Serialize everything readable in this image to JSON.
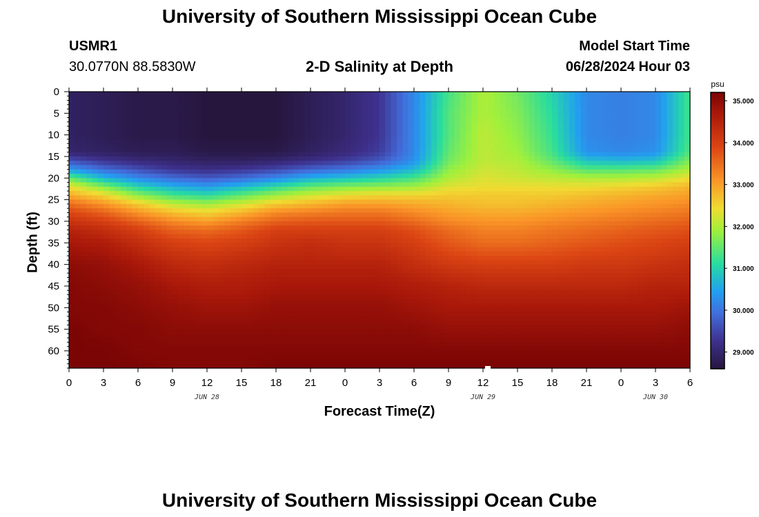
{
  "page": {
    "title_top": "University of Southern Mississippi Ocean Cube",
    "title_bottom": "University of Southern Mississippi Ocean Cube",
    "station_id": "USMR1",
    "station_coords": "30.0770N  88.5830W",
    "plot_title": "2-D Salinity at Depth",
    "model_start_label": "Model Start Time",
    "model_start_value": "06/28/2024 Hour 03"
  },
  "chart_data": {
    "type": "heatmap",
    "title": "2-D Salinity at Depth",
    "xlabel": "Forecast Time(Z)",
    "ylabel": "Depth (ft)",
    "x_tick_labels": [
      "0",
      "3",
      "6",
      "9",
      "12",
      "15",
      "18",
      "21",
      "0",
      "3",
      "6",
      "9",
      "12",
      "15",
      "18",
      "21",
      "0",
      "3",
      "6"
    ],
    "x_date_labels": [
      {
        "label": "JUN 28",
        "tick_index": 4
      },
      {
        "label": "JUN 29",
        "tick_index": 12
      },
      {
        "label": "JUN 30",
        "tick_index": 17
      }
    ],
    "xlim_hours": [
      0,
      54
    ],
    "ylim_ft": [
      0,
      64
    ],
    "y_tick_values": [
      0,
      5,
      10,
      15,
      20,
      25,
      30,
      35,
      40,
      45,
      50,
      55,
      60
    ],
    "colorbar": {
      "unit": "psu",
      "range": [
        28.6,
        35.2
      ],
      "tick_values": [
        35.0,
        34.0,
        33.0,
        32.0,
        31.0,
        30.0,
        29.0
      ],
      "tick_labels": [
        "35.000",
        "34.000",
        "33.000",
        "32.000",
        "31.000",
        "30.000",
        "29.000"
      ]
    },
    "profile_time_hours": [
      0,
      3,
      6,
      9,
      12,
      15,
      18,
      21,
      24,
      27,
      30,
      33,
      36,
      39,
      42,
      45,
      48,
      51,
      54
    ],
    "profile_depth_ft": [
      0,
      5,
      10,
      14,
      16,
      18,
      20,
      22,
      24,
      26,
      28,
      30,
      32,
      35,
      40,
      45,
      50,
      55,
      60,
      64
    ],
    "salinity_psu": [
      [
        28.9,
        28.9,
        28.9,
        29.0,
        29.6,
        30.4,
        31.5,
        32.4,
        32.9,
        33.5,
        33.9,
        34.2,
        34.5,
        34.7,
        35.0,
        35.1,
        35.1,
        35.2,
        35.2,
        35.2
      ],
      [
        28.8,
        28.8,
        28.8,
        28.9,
        29.3,
        29.9,
        30.7,
        31.7,
        32.5,
        33.1,
        33.6,
        34.0,
        34.3,
        34.6,
        34.9,
        35.0,
        35.1,
        35.1,
        35.2,
        35.2
      ],
      [
        28.7,
        28.7,
        28.7,
        28.8,
        29.1,
        29.6,
        30.2,
        31.0,
        31.8,
        32.6,
        33.1,
        33.6,
        34.0,
        34.3,
        34.7,
        34.9,
        35.0,
        35.1,
        35.1,
        35.2
      ],
      [
        28.7,
        28.7,
        28.7,
        28.8,
        29.0,
        29.3,
        29.9,
        30.6,
        31.3,
        32.1,
        32.7,
        33.2,
        33.6,
        34.0,
        34.4,
        34.7,
        34.9,
        35.0,
        35.1,
        35.1
      ],
      [
        28.6,
        28.6,
        28.6,
        28.7,
        28.9,
        29.2,
        29.7,
        30.4,
        31.1,
        31.9,
        32.5,
        33.0,
        33.5,
        33.9,
        34.3,
        34.6,
        34.8,
        35.0,
        35.1,
        35.1
      ],
      [
        28.6,
        28.6,
        28.6,
        28.7,
        28.9,
        29.3,
        29.9,
        30.7,
        31.5,
        32.2,
        32.8,
        33.3,
        33.7,
        34.0,
        34.4,
        34.6,
        34.8,
        35.0,
        35.1,
        35.1
      ],
      [
        28.6,
        28.6,
        28.6,
        28.7,
        29.0,
        29.5,
        30.2,
        31.1,
        31.9,
        32.6,
        33.2,
        33.6,
        34.0,
        34.2,
        34.5,
        34.7,
        34.9,
        35.0,
        35.1,
        35.2
      ],
      [
        28.8,
        28.8,
        28.8,
        28.9,
        29.2,
        29.8,
        30.6,
        31.5,
        32.2,
        32.8,
        33.3,
        33.7,
        34.0,
        34.3,
        34.5,
        34.7,
        34.9,
        35.0,
        35.1,
        35.2
      ],
      [
        29.0,
        29.0,
        29.0,
        29.1,
        29.4,
        30.0,
        30.8,
        31.7,
        32.4,
        33.0,
        33.4,
        33.7,
        34.0,
        34.2,
        34.5,
        34.7,
        34.9,
        35.0,
        35.1,
        35.2
      ],
      [
        29.3,
        29.3,
        29.3,
        29.4,
        29.7,
        30.3,
        31.0,
        31.8,
        32.5,
        33.0,
        33.4,
        33.7,
        34.0,
        34.2,
        34.5,
        34.7,
        34.9,
        35.0,
        35.1,
        35.2
      ],
      [
        30.2,
        30.2,
        30.2,
        30.2,
        30.3,
        30.7,
        31.3,
        31.9,
        32.5,
        32.9,
        33.2,
        33.5,
        33.8,
        34.0,
        34.3,
        34.6,
        34.8,
        35.0,
        35.1,
        35.2
      ],
      [
        31.3,
        31.4,
        31.4,
        31.5,
        31.6,
        31.8,
        32.0,
        32.3,
        32.6,
        32.8,
        33.0,
        33.2,
        33.5,
        33.7,
        34.1,
        34.5,
        34.7,
        34.9,
        35.1,
        35.2
      ],
      [
        32.0,
        32.0,
        32.1,
        32.1,
        32.1,
        32.2,
        32.3,
        32.4,
        32.6,
        32.7,
        32.9,
        33.1,
        33.3,
        33.5,
        34.0,
        34.4,
        34.7,
        34.9,
        35.1,
        35.2
      ],
      [
        31.6,
        31.7,
        31.8,
        31.9,
        32.0,
        32.1,
        32.2,
        32.4,
        32.6,
        32.7,
        32.9,
        33.1,
        33.3,
        33.5,
        34.0,
        34.4,
        34.7,
        34.9,
        35.1,
        35.2
      ],
      [
        31.0,
        31.1,
        31.2,
        31.3,
        31.5,
        31.8,
        32.1,
        32.4,
        32.6,
        32.8,
        33.0,
        33.2,
        33.4,
        33.6,
        34.0,
        34.4,
        34.7,
        34.9,
        35.1,
        35.2
      ],
      [
        30.2,
        30.2,
        30.2,
        30.3,
        30.8,
        31.4,
        32.0,
        32.4,
        32.7,
        32.9,
        33.1,
        33.3,
        33.5,
        33.7,
        34.1,
        34.4,
        34.7,
        34.9,
        35.1,
        35.2
      ],
      [
        30.1,
        30.1,
        30.1,
        30.2,
        30.7,
        31.4,
        32.0,
        32.5,
        32.8,
        33.0,
        33.2,
        33.4,
        33.6,
        33.8,
        34.1,
        34.4,
        34.7,
        34.9,
        35.1,
        35.2
      ],
      [
        30.2,
        30.2,
        30.2,
        30.3,
        30.8,
        31.5,
        32.1,
        32.6,
        32.9,
        33.1,
        33.3,
        33.5,
        33.7,
        33.9,
        34.2,
        34.5,
        34.7,
        34.9,
        35.1,
        35.2
      ],
      [
        31.3,
        31.3,
        31.3,
        31.4,
        31.7,
        32.0,
        32.4,
        32.8,
        33.0,
        33.2,
        33.4,
        33.6,
        33.8,
        34.0,
        34.3,
        34.5,
        34.8,
        35.0,
        35.1,
        35.2
      ]
    ]
  }
}
